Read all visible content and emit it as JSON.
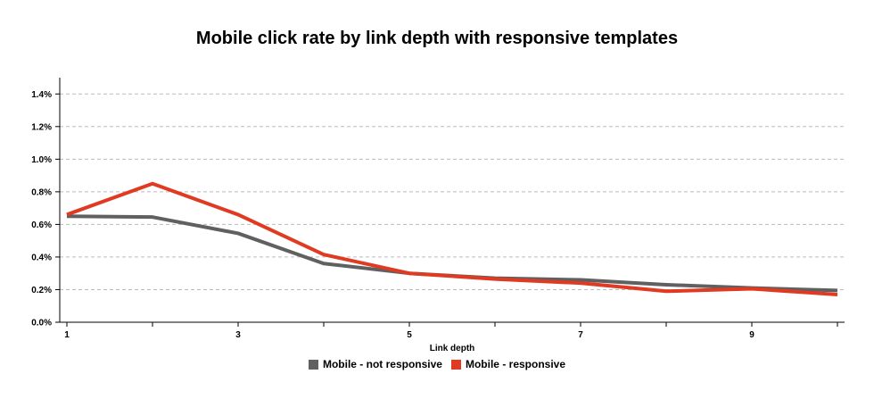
{
  "chart_data": {
    "type": "line",
    "title": "Mobile click rate by link depth with responsive templates",
    "xlabel": "Link depth",
    "ylabel": "",
    "x": [
      1,
      2,
      3,
      4,
      5,
      6,
      7,
      8,
      9,
      10
    ],
    "x_ticks": [
      "1",
      "3",
      "5",
      "7",
      "9"
    ],
    "xlim": [
      1,
      10
    ],
    "ylim": [
      0,
      1.5
    ],
    "y_ticks": [
      "0.0%",
      "0.2%",
      "0.4%",
      "0.6%",
      "0.8%",
      "1.0%",
      "1.2%",
      "1.4%"
    ],
    "grid": true,
    "legend_position": "bottom",
    "series": [
      {
        "name": "Mobile - not responsive",
        "color": "#606060",
        "values": [
          0.65,
          0.645,
          0.545,
          0.36,
          0.3,
          0.27,
          0.26,
          0.23,
          0.21,
          0.195
        ]
      },
      {
        "name": "Mobile - responsive",
        "color": "#e03a22",
        "values": [
          0.66,
          0.85,
          0.66,
          0.415,
          0.3,
          0.265,
          0.24,
          0.19,
          0.205,
          0.17
        ]
      }
    ]
  }
}
